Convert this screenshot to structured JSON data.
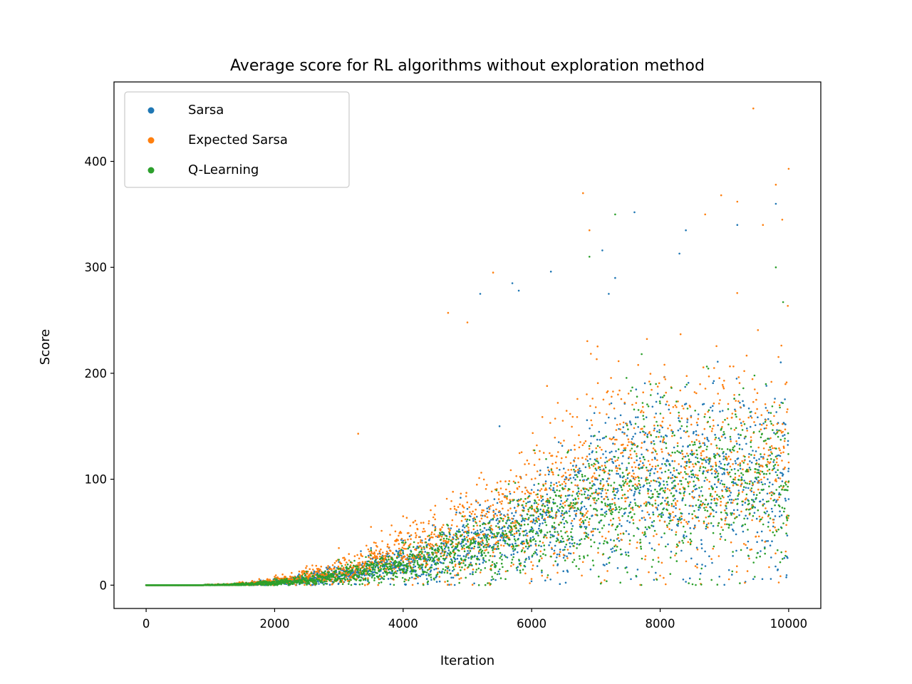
{
  "chart_data": {
    "type": "scatter",
    "title": "Average score for RL algorithms without exploration method",
    "xlabel": "Iteration",
    "ylabel": "Score",
    "xlim": [
      -500,
      10500
    ],
    "ylim": [
      -22,
      475
    ],
    "xticks": [
      0,
      2000,
      4000,
      6000,
      8000,
      10000
    ],
    "xtick_labels": [
      "0",
      "2000",
      "4000",
      "6000",
      "8000",
      "10000"
    ],
    "yticks": [
      0,
      100,
      200,
      300,
      400
    ],
    "ytick_labels": [
      "0",
      "100",
      "200",
      "300",
      "400"
    ],
    "grid": false,
    "legend_position": "top-left",
    "series": [
      {
        "name": "Sarsa",
        "color": "#1f77b4",
        "summary": "10000 points, one per iteration; score near 0 until ~1000, rising roughly quadratically to mean ~80 by 6000 and ~100 by 10000, spread up to ~360",
        "points": [
          [
            500,
            0
          ],
          [
            1000,
            0
          ],
          [
            1500,
            2
          ],
          [
            2000,
            6
          ],
          [
            2500,
            12
          ],
          [
            3000,
            22
          ],
          [
            3500,
            35
          ],
          [
            4000,
            42
          ],
          [
            4500,
            55
          ],
          [
            5000,
            72
          ],
          [
            5200,
            275
          ],
          [
            5500,
            150
          ],
          [
            5700,
            285
          ],
          [
            5800,
            278
          ],
          [
            6000,
            90
          ],
          [
            6300,
            296
          ],
          [
            6500,
            110
          ],
          [
            7000,
            100
          ],
          [
            7100,
            316
          ],
          [
            7200,
            275
          ],
          [
            7300,
            290
          ],
          [
            7600,
            352
          ],
          [
            8000,
            95
          ],
          [
            8300,
            313
          ],
          [
            8400,
            335
          ],
          [
            8500,
            88
          ],
          [
            9000,
            105
          ],
          [
            9200,
            340
          ],
          [
            9500,
            100
          ],
          [
            9800,
            360
          ],
          [
            10000,
            110
          ]
        ]
      },
      {
        "name": "Expected Sarsa",
        "color": "#ff7f0e",
        "summary": "10000 points; rises slightly faster early (3000-5000), mean ~100 by 7000 and ~110 by 10000, outliers up to ~450",
        "points": [
          [
            500,
            0
          ],
          [
            1000,
            0
          ],
          [
            1500,
            3
          ],
          [
            2000,
            8
          ],
          [
            2500,
            18
          ],
          [
            3000,
            35
          ],
          [
            3300,
            143
          ],
          [
            3500,
            55
          ],
          [
            4000,
            65
          ],
          [
            4500,
            75
          ],
          [
            4700,
            257
          ],
          [
            5000,
            248
          ],
          [
            5400,
            295
          ],
          [
            6000,
            100
          ],
          [
            6800,
            370
          ],
          [
            6900,
            335
          ],
          [
            7500,
            105
          ],
          [
            8000,
            110
          ],
          [
            8700,
            350
          ],
          [
            8950,
            368
          ],
          [
            9200,
            362
          ],
          [
            9450,
            450
          ],
          [
            9600,
            340
          ],
          [
            9800,
            378
          ],
          [
            9900,
            345
          ],
          [
            10000,
            393
          ]
        ]
      },
      {
        "name": "Q-Learning",
        "color": "#2ca02c",
        "summary": "10000 points; similar growth, mean ~40 at 4000, ~75 at 6000, ~95 at 10000, outliers up to ~350",
        "points": [
          [
            500,
            0
          ],
          [
            1000,
            0
          ],
          [
            1500,
            2
          ],
          [
            2000,
            6
          ],
          [
            2500,
            13
          ],
          [
            3000,
            24
          ],
          [
            3500,
            33
          ],
          [
            4000,
            40
          ],
          [
            4500,
            52
          ],
          [
            5000,
            62
          ],
          [
            6000,
            75
          ],
          [
            6900,
            310
          ],
          [
            7000,
            88
          ],
          [
            7300,
            350
          ],
          [
            8000,
            90
          ],
          [
            8800,
            5
          ],
          [
            9000,
            95
          ],
          [
            9800,
            300
          ],
          [
            10000,
            98
          ]
        ]
      }
    ]
  }
}
